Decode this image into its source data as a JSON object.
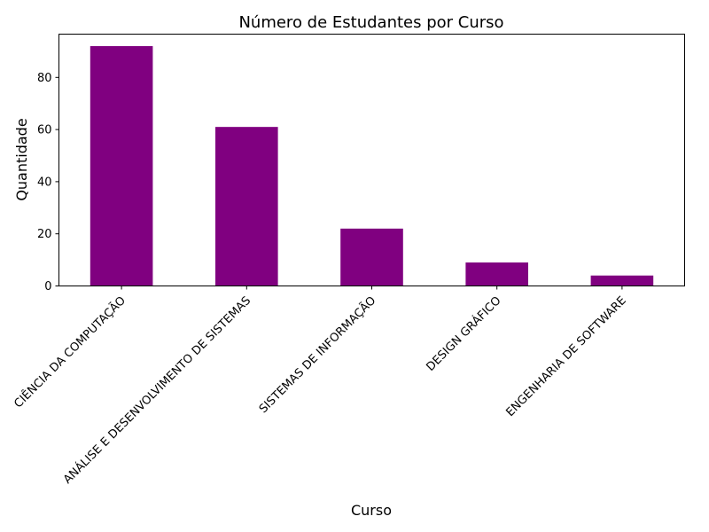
{
  "chart_data": {
    "type": "bar",
    "title": "Número de Estudantes por Curso",
    "xlabel": "Curso",
    "ylabel": "Quantidade",
    "categories": [
      "CIÊNCIA DA COMPUTAÇÃO",
      "ANÁLISE E DESENVOLVIMENTO DE SISTEMAS",
      "SISTEMAS DE INFORMAÇÃO",
      "DESIGN GRÁFICO",
      "ENGENHARIA DE SOFTWARE"
    ],
    "values": [
      92,
      61,
      22,
      9,
      4
    ],
    "ylim": [
      0,
      96.6
    ],
    "yticks": [
      0,
      20,
      40,
      60,
      80
    ],
    "bar_color": "#800080",
    "grid": false,
    "legend": "none"
  }
}
